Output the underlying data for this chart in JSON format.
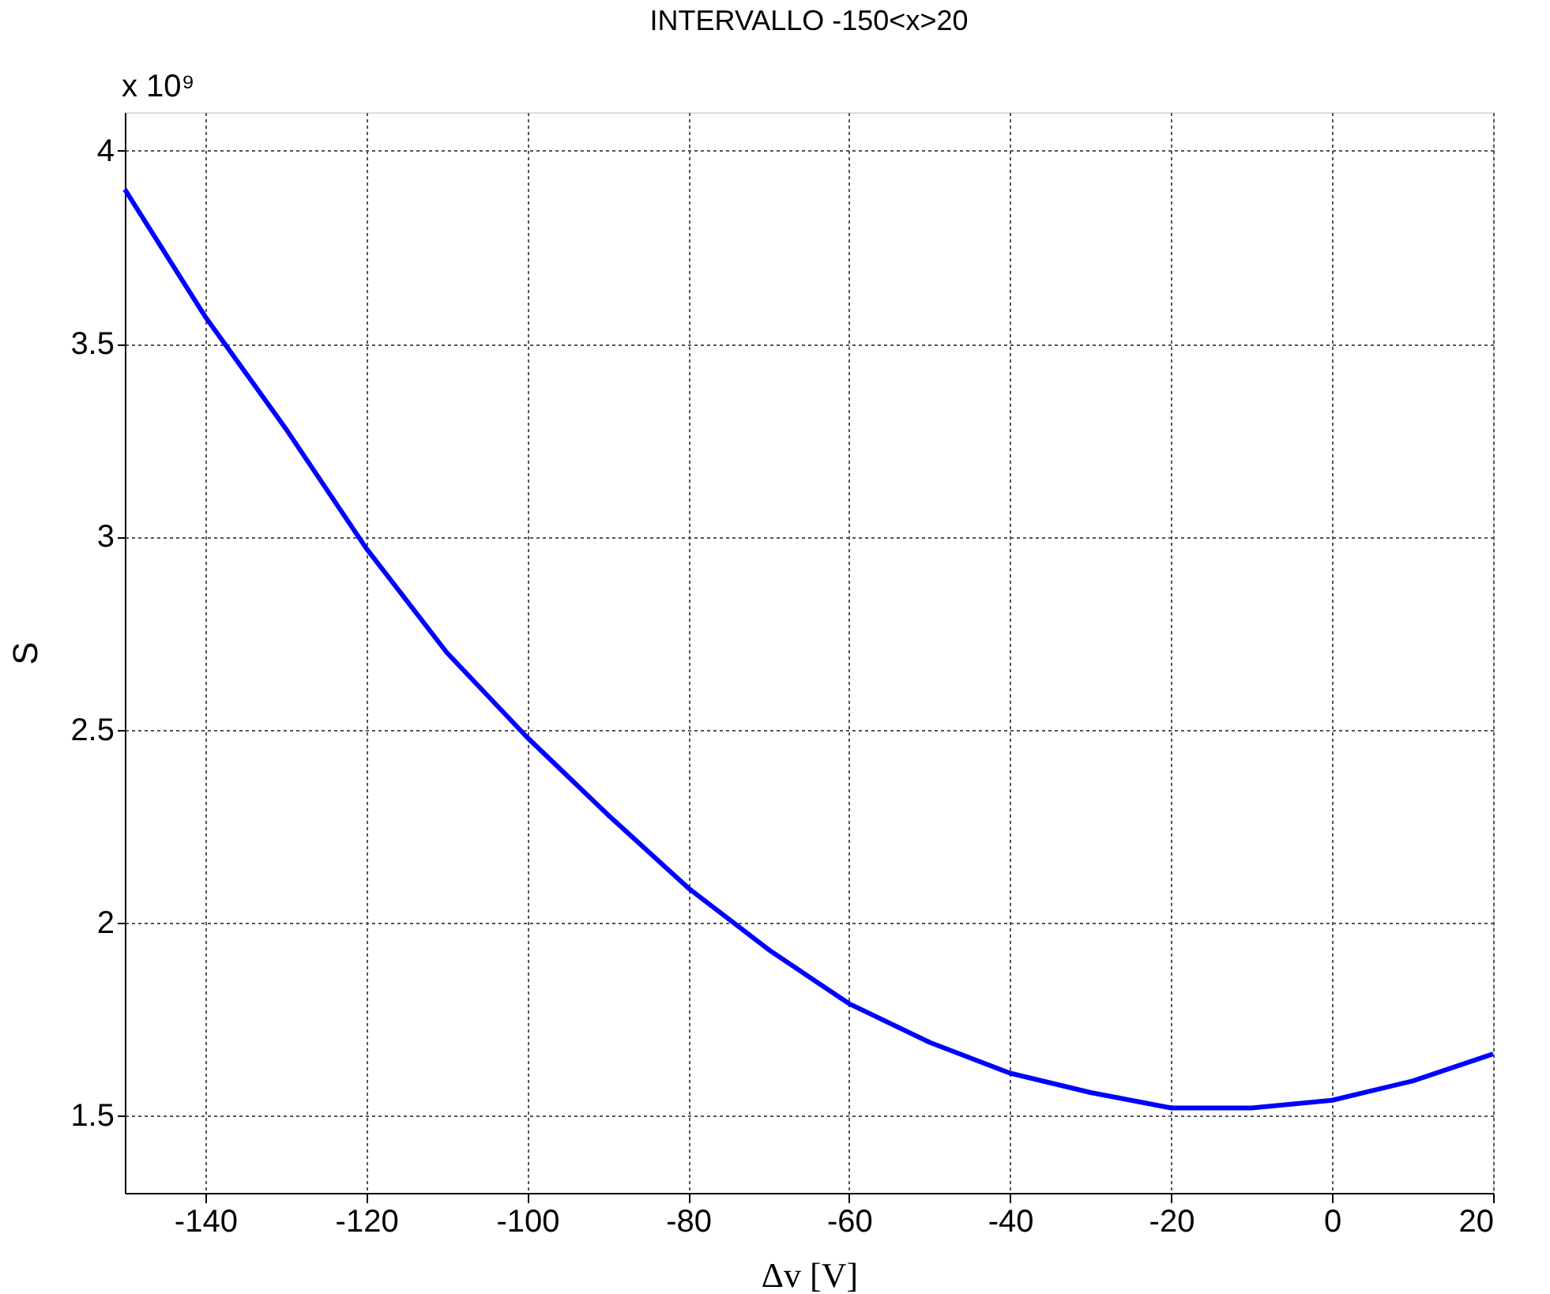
{
  "chart_data": {
    "type": "line",
    "title": "INTERVALLO -150<x>20",
    "xlabel": "Δv [V]",
    "ylabel": "S",
    "annotations": [
      "x 10⁹"
    ],
    "x": [
      -150,
      -140,
      -130,
      -120,
      -110,
      -100,
      -90,
      -80,
      -70,
      -60,
      -50,
      -40,
      -30,
      -20,
      -10,
      0,
      10,
      20
    ],
    "series": [
      {
        "color": "#0000ff",
        "values": [
          3.9,
          3.57,
          3.28,
          2.97,
          2.7,
          2.48,
          2.28,
          2.09,
          1.93,
          1.79,
          1.69,
          1.61,
          1.56,
          1.52,
          1.52,
          1.54,
          1.59,
          1.66
        ]
      }
    ],
    "xlim": [
      -150,
      20
    ],
    "xticks": [
      -140,
      -120,
      -100,
      -80,
      -60,
      -40,
      -20,
      0,
      20
    ],
    "ylim": [
      1.3,
      4.1
    ],
    "yticks": [
      1.5,
      2,
      2.5,
      3,
      3.5,
      4
    ],
    "grid": true,
    "line_style": "solid",
    "marker": "none"
  }
}
